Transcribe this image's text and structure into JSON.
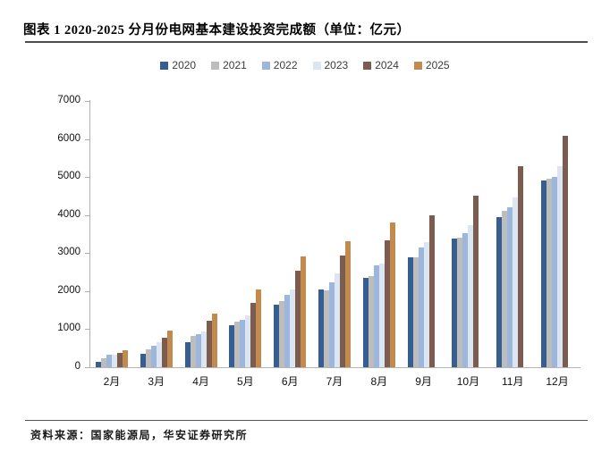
{
  "header": {
    "title": "图表 1 2020-2025 分月份电网基本建设投资完成额（单位：亿元）"
  },
  "footer": {
    "source": "资料来源：国家能源局，华安证券研究所"
  },
  "chart_data": {
    "type": "bar",
    "title": "2020-2025 分月份电网基本建设投资完成额",
    "unit": "亿元",
    "grid": false,
    "legend_position": "top",
    "categories": [
      "2月",
      "3月",
      "4月",
      "5月",
      "6月",
      "7月",
      "8月",
      "9月",
      "10月",
      "11月",
      "12月"
    ],
    "series": [
      {
        "name": "2020",
        "color": "#365E91",
        "values": [
          130,
          350,
          660,
          1110,
          1650,
          2053,
          2360,
          2899,
          3380,
          3950,
          4900
        ]
      },
      {
        "name": "2021",
        "color": "#BDBDBE",
        "values": [
          240,
          470,
          820,
          1200,
          1734,
          2029,
          2400,
          2891,
          3410,
          4102,
          4951
        ]
      },
      {
        "name": "2022",
        "color": "#9DB7DC",
        "values": [
          320,
          560,
          870,
          1250,
          1900,
          2239,
          2680,
          3154,
          3520,
          4210,
          5012
        ]
      },
      {
        "name": "2023",
        "color": "#DCE5F2",
        "values": [
          330,
          665,
          940,
          1370,
          2050,
          2473,
          2720,
          3280,
          3740,
          4460,
          5275
        ]
      },
      {
        "name": "2024",
        "color": "#7D5C50",
        "values": [
          370,
          766,
          1229,
          1703,
          2540,
          2947,
          3330,
          3982,
          4502,
          5290,
          6083
        ]
      },
      {
        "name": "2025",
        "color": "#C28A4E",
        "values": [
          436,
          956,
          1408,
          2040,
          2911,
          3315,
          3796,
          null,
          null,
          null,
          null
        ]
      }
    ],
    "yaxis": {
      "min": 0,
      "max": 7000,
      "step": 1000,
      "tick_labels": [
        "0",
        "1000",
        "2000",
        "3000",
        "4000",
        "5000",
        "6000",
        "7000"
      ]
    }
  }
}
